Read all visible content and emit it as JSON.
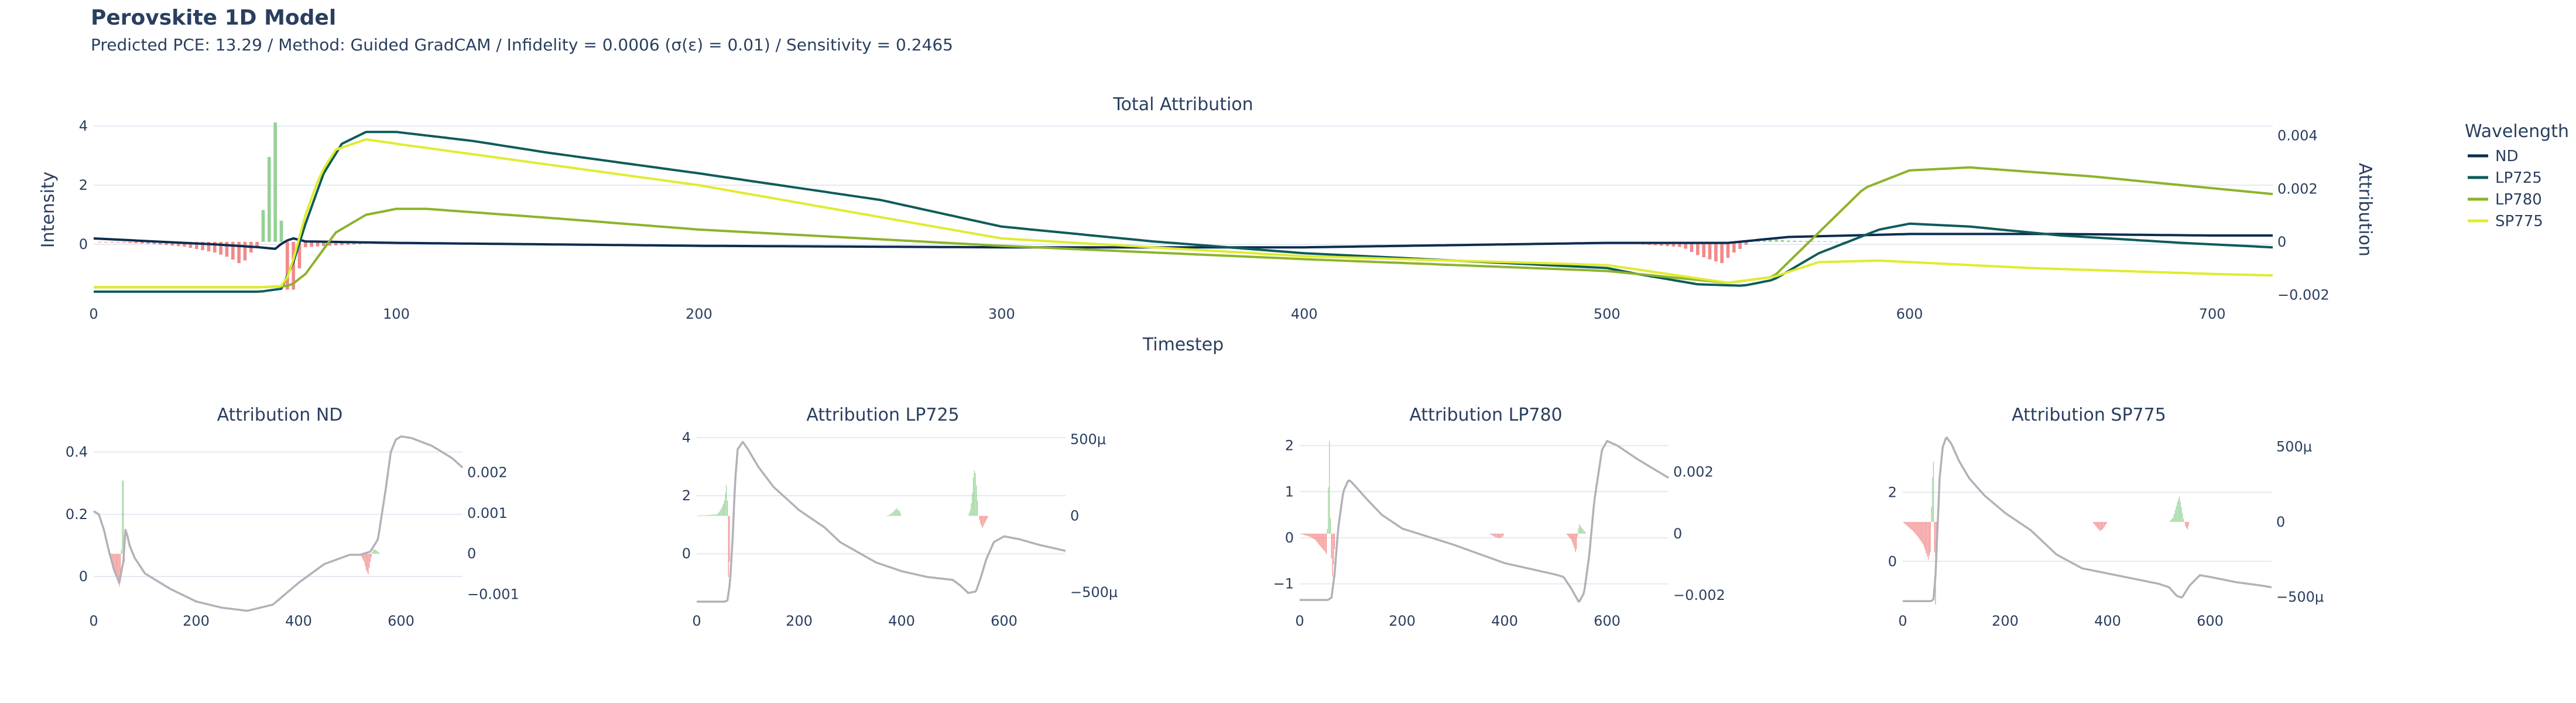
{
  "figure": {
    "title": "Perovskite 1D Model",
    "subtitle": "Predicted PCE: 13.29 / Method: Guided GradCAM / Infidelity = 0.0006 (σ(ε) = 0.01) / Sensitivity = 0.2465"
  },
  "legend": {
    "title": "Wavelength",
    "items": [
      {
        "name": "ND",
        "color": "#0b2d4f"
      },
      {
        "name": "LP725",
        "color": "#0e5c5a"
      },
      {
        "name": "LP780",
        "color": "#8db32b"
      },
      {
        "name": "SP775",
        "color": "#dfec2f"
      }
    ]
  },
  "colors": {
    "positive": "#95d195",
    "negative": "#f28a8a",
    "single_series": "#b4b0b8",
    "grid": "#e4e9f2"
  },
  "chart_data": [
    {
      "id": "total",
      "type": "line+bar",
      "title": "Total Attribution",
      "xlabel": "Timestep",
      "ylabel": "Intensity",
      "y2label": "Attribution",
      "xlim": [
        0,
        720
      ],
      "ylim": [
        -1.8,
        4.3
      ],
      "y2lim": [
        -0.0021,
        0.0047
      ],
      "xticks": [
        0,
        100,
        200,
        300,
        400,
        500,
        600,
        700
      ],
      "yticks": [
        0,
        2,
        4
      ],
      "y2ticks": [
        -0.002,
        0,
        0.002,
        0.004
      ],
      "y2ticklabels": [
        "−0.002",
        "0",
        "0.002",
        "0.004"
      ],
      "series": [
        {
          "name": "ND",
          "x": [
            0,
            20,
            40,
            55,
            60,
            63,
            66,
            70,
            100,
            200,
            300,
            400,
            500,
            540,
            560,
            600,
            650,
            700,
            720
          ],
          "y": [
            0.2,
            0.1,
            0.0,
            -0.1,
            -0.15,
            0.1,
            0.2,
            0.1,
            0.05,
            -0.05,
            -0.1,
            -0.1,
            0.05,
            0.05,
            0.25,
            0.35,
            0.35,
            0.3,
            0.3
          ]
        },
        {
          "name": "LP725",
          "x": [
            0,
            55,
            62,
            66,
            70,
            76,
            82,
            90,
            100,
            125,
            150,
            200,
            260,
            300,
            350,
            400,
            450,
            500,
            510,
            530,
            545,
            555,
            570,
            590,
            600,
            620,
            650,
            690,
            720
          ],
          "y": [
            -1.6,
            -1.6,
            -1.5,
            -0.6,
            0.7,
            2.4,
            3.4,
            3.8,
            3.8,
            3.5,
            3.1,
            2.4,
            1.5,
            0.6,
            0.1,
            -0.3,
            -0.55,
            -0.8,
            -1.0,
            -1.35,
            -1.4,
            -1.2,
            -0.3,
            0.5,
            0.7,
            0.6,
            0.3,
            0.05,
            -0.1
          ]
        },
        {
          "name": "LP780",
          "x": [
            0,
            55,
            65,
            70,
            75,
            80,
            90,
            100,
            110,
            150,
            200,
            300,
            400,
            500,
            520,
            540,
            555,
            570,
            585,
            600,
            620,
            660,
            720
          ],
          "y": [
            -1.45,
            -1.45,
            -1.4,
            -1.0,
            -0.3,
            0.4,
            1.0,
            1.2,
            1.2,
            0.9,
            0.5,
            -0.05,
            -0.5,
            -0.9,
            -1.1,
            -1.3,
            -1.1,
            0.4,
            1.9,
            2.5,
            2.6,
            2.3,
            1.7
          ]
        },
        {
          "name": "SP775",
          "x": [
            0,
            55,
            63,
            66,
            70,
            75,
            80,
            90,
            100,
            200,
            300,
            400,
            500,
            520,
            540,
            555,
            570,
            590,
            610,
            640,
            700,
            720
          ],
          "y": [
            -1.45,
            -1.45,
            -1.4,
            -0.5,
            1.0,
            2.4,
            3.2,
            3.55,
            3.4,
            2.0,
            0.2,
            -0.4,
            -0.7,
            -1.0,
            -1.3,
            -1.1,
            -0.6,
            -0.55,
            -0.65,
            -0.8,
            -1.0,
            -1.05
          ]
        }
      ],
      "attribution": {
        "x": [
          0,
          10,
          20,
          30,
          40,
          45,
          48,
          50,
          52,
          54,
          55,
          56,
          57,
          58,
          59,
          60,
          61,
          62,
          63,
          64,
          65,
          70,
          100,
          300,
          400,
          500,
          525,
          530,
          535,
          538,
          540,
          542,
          545,
          548,
          550,
          555,
          560,
          580,
          720
        ],
        "y": [
          0,
          -3e-05,
          -8e-05,
          -0.00018,
          -0.0004,
          -0.0006,
          -0.0008,
          -0.0007,
          -0.0004,
          -0.0002,
          0.0005,
          0.0012,
          0.002,
          0.0032,
          0.0043,
          0.0045,
          0.0025,
          0.0008,
          -0.0008,
          -0.0018,
          -0.0022,
          -0.0002,
          0,
          0,
          0,
          0,
          -0.0002,
          -0.0005,
          -0.0007,
          -0.0008,
          -0.0006,
          -0.0004,
          -0.0002,
          8e-05,
          0.00012,
          0.0001,
          5e-05,
          0,
          0
        ]
      }
    },
    {
      "id": "nd",
      "type": "line+bar",
      "title": "Attribution ND",
      "xlim": [
        0,
        720
      ],
      "ylim": [
        -0.09,
        0.465
      ],
      "y2lim": [
        -0.00125,
        0.003
      ],
      "xticks": [
        0,
        200,
        400,
        600
      ],
      "yticks": [
        0,
        0.2,
        0.4
      ],
      "y2ticks": [
        -0.001,
        0,
        0.001,
        0.002
      ],
      "y2ticklabels": [
        "−0.001",
        "0",
        "0.001",
        "0.002"
      ],
      "series": [
        {
          "name": "ND",
          "x": [
            0,
            10,
            20,
            30,
            40,
            50,
            58,
            62,
            66,
            70,
            80,
            100,
            150,
            200,
            250,
            300,
            350,
            400,
            450,
            500,
            520,
            540,
            555,
            570,
            580,
            590,
            600,
            620,
            660,
            700,
            720
          ],
          "y": [
            0.21,
            0.2,
            0.15,
            0.08,
            0.02,
            -0.02,
            0.05,
            0.15,
            0.13,
            0.1,
            0.06,
            0.01,
            -0.04,
            -0.08,
            -0.1,
            -0.11,
            -0.09,
            -0.02,
            0.04,
            0.07,
            0.07,
            0.08,
            0.12,
            0.28,
            0.4,
            0.44,
            0.45,
            0.445,
            0.42,
            0.38,
            0.35
          ]
        }
      ],
      "attribution": {
        "x": [
          0,
          30,
          35,
          40,
          45,
          50,
          53,
          55,
          56,
          57,
          58,
          59,
          60,
          61,
          62,
          64,
          70,
          300,
          520,
          528,
          532,
          536,
          540,
          545,
          550,
          555,
          560,
          720
        ],
        "y": [
          0,
          0,
          -0.0002,
          -0.0004,
          -0.0006,
          -0.0008,
          -0.0006,
          0.0008,
          0.0018,
          0.0025,
          0.0018,
          0.0006,
          -0.0002,
          -0.0001,
          0,
          0,
          0,
          0,
          0,
          -0.0002,
          -0.0004,
          -0.0005,
          -0.0002,
          0.0001,
          0.0001,
          5e-05,
          0,
          0
        ]
      }
    },
    {
      "id": "lp725",
      "type": "line+bar",
      "title": "Attribution LP725",
      "xlim": [
        0,
        720
      ],
      "ylim": [
        -1.75,
        4.2
      ],
      "y2lim": [
        -0.00058,
        0.00055
      ],
      "xticks": [
        0,
        200,
        400,
        600
      ],
      "yticks": [
        0,
        2,
        4
      ],
      "y2ticks": [
        -0.0005,
        0,
        0.0005
      ],
      "y2ticklabels": [
        "−500μ",
        "0",
        "500μ"
      ],
      "series": [
        {
          "name": "LP725",
          "x": [
            0,
            55,
            60,
            65,
            70,
            75,
            80,
            90,
            100,
            120,
            150,
            200,
            250,
            280,
            300,
            350,
            400,
            450,
            500,
            515,
            530,
            545,
            555,
            565,
            580,
            600,
            630,
            670,
            720
          ],
          "y": [
            -1.65,
            -1.65,
            -1.6,
            -1.0,
            0.5,
            2.5,
            3.6,
            3.85,
            3.6,
            3.0,
            2.3,
            1.5,
            0.9,
            0.4,
            0.2,
            -0.3,
            -0.6,
            -0.8,
            -0.9,
            -1.1,
            -1.35,
            -1.3,
            -0.8,
            -0.2,
            0.4,
            0.6,
            0.5,
            0.3,
            0.1
          ]
        }
      ],
      "attribution": {
        "x": [
          0,
          40,
          45,
          50,
          54,
          56,
          58,
          60,
          61,
          62,
          63,
          64,
          65,
          66,
          70,
          370,
          378,
          385,
          390,
          396,
          400,
          530,
          535,
          538,
          540,
          543,
          546,
          548,
          550,
          554,
          558,
          562,
          570,
          720
        ],
        "y": [
          0,
          1e-05,
          3e-05,
          6e-05,
          0.0001,
          0.00015,
          0.0002,
          0.0001,
          -0.0002,
          -0.0004,
          -0.00058,
          -0.0003,
          -5e-05,
          0,
          0,
          0,
          1e-05,
          3e-05,
          5e-05,
          3e-05,
          0,
          0,
          5e-05,
          0.00015,
          0.00025,
          0.00032,
          0.0002,
          0.0001,
          0,
          -5e-05,
          -8e-05,
          -5e-05,
          0,
          0
        ]
      }
    },
    {
      "id": "lp780",
      "type": "line+bar",
      "title": "Attribution LP780",
      "xlim": [
        0,
        720
      ],
      "ylim": [
        -1.45,
        2.3
      ],
      "y2lim": [
        -0.0023,
        0.0033
      ],
      "xticks": [
        0,
        200,
        400,
        600
      ],
      "yticks": [
        -1,
        0,
        1,
        2
      ],
      "y2ticks": [
        -0.002,
        0,
        0.002
      ],
      "y2ticklabels": [
        "−0.002",
        "0",
        "0.002"
      ],
      "series": [
        {
          "name": "LP780",
          "x": [
            0,
            55,
            62,
            68,
            75,
            85,
            95,
            100,
            110,
            130,
            160,
            200,
            300,
            400,
            500,
            515,
            530,
            545,
            555,
            565,
            575,
            590,
            600,
            620,
            660,
            720
          ],
          "y": [
            -1.35,
            -1.35,
            -1.3,
            -0.8,
            0.2,
            1.0,
            1.25,
            1.22,
            1.1,
            0.85,
            0.5,
            0.2,
            -0.15,
            -0.55,
            -0.8,
            -0.85,
            -1.1,
            -1.4,
            -1.2,
            -0.4,
            0.8,
            1.9,
            2.1,
            2.0,
            1.7,
            1.3
          ]
        }
      ],
      "attribution": {
        "x": [
          0,
          20,
          30,
          35,
          40,
          45,
          50,
          53,
          55,
          57,
          58,
          60,
          62,
          64,
          66,
          70,
          370,
          380,
          390,
          396,
          400,
          520,
          530,
          535,
          538,
          540,
          543,
          546,
          550,
          555,
          560,
          720
        ],
        "y": [
          0,
          -0.0001,
          -0.0002,
          -0.0003,
          -0.0004,
          -0.0005,
          -0.0006,
          -0.0007,
          0.001,
          0.002,
          0.003,
          0.0005,
          -0.0008,
          -0.0014,
          -0.001,
          0,
          0,
          -0.0001,
          -0.00015,
          -0.0001,
          0,
          0,
          -0.0002,
          -0.0004,
          -0.0006,
          -0.0005,
          0.0001,
          0.0003,
          0.0002,
          0.0001,
          0,
          0
        ]
      }
    },
    {
      "id": "sp775",
      "type": "line+bar",
      "title": "Attribution SP775",
      "xlim": [
        0,
        720
      ],
      "ylim": [
        -1.25,
        3.75
      ],
      "y2lim": [
        -0.00055,
        0.0006
      ],
      "xticks": [
        0,
        200,
        400,
        600
      ],
      "yticks": [
        0,
        2
      ],
      "y2ticks": [
        -0.0005,
        0,
        0.0005
      ],
      "y2ticklabels": [
        "−500μ",
        "0",
        "500μ"
      ],
      "series": [
        {
          "name": "SP775",
          "x": [
            0,
            55,
            60,
            64,
            68,
            72,
            78,
            85,
            95,
            110,
            130,
            160,
            200,
            250,
            300,
            350,
            400,
            450,
            500,
            520,
            535,
            545,
            560,
            580,
            600,
            650,
            700,
            720
          ],
          "y": [
            -1.15,
            -1.15,
            -1.1,
            -0.4,
            1.0,
            2.4,
            3.3,
            3.6,
            3.4,
            2.9,
            2.4,
            1.9,
            1.4,
            0.9,
            0.2,
            -0.2,
            -0.35,
            -0.5,
            -0.65,
            -0.75,
            -1.0,
            -1.05,
            -0.7,
            -0.4,
            -0.45,
            -0.6,
            -0.7,
            -0.75
          ]
        }
      ],
      "attribution": {
        "x": [
          0,
          10,
          20,
          30,
          40,
          45,
          50,
          54,
          56,
          58,
          60,
          62,
          64,
          66,
          68,
          70,
          370,
          375,
          380,
          385,
          390,
          396,
          400,
          520,
          528,
          532,
          536,
          540,
          544,
          548,
          552,
          556,
          560,
          720
        ],
        "y": [
          0,
          -3e-05,
          -6e-05,
          -0.0001,
          -0.00015,
          -0.0002,
          -0.00025,
          -0.0002,
          0.0001,
          0.0003,
          0.0004,
          -0.0002,
          -0.00055,
          -0.0003,
          -0.0001,
          0,
          0,
          -2e-05,
          -4e-05,
          -6e-05,
          -5e-05,
          -2e-05,
          0,
          0,
          3e-05,
          8e-05,
          0.00013,
          0.00017,
          0.0001,
          2e-05,
          -3e-05,
          -5e-05,
          0,
          0
        ]
      }
    }
  ]
}
